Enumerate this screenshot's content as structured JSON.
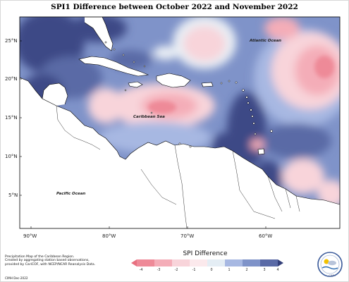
{
  "title": "SPI1 Difference between October 2022 and November 2022",
  "map": {
    "lat_ticks": [
      "25°N",
      "20°N",
      "15°N",
      "10°N",
      "5°N"
    ],
    "lon_ticks": [
      "90°W",
      "80°W",
      "70°W",
      "60°W"
    ],
    "labels": {
      "atlantic": "Atlantic Ocean",
      "caribbean": "Caribbean Sea",
      "pacific": "Pacific Ocean"
    },
    "colors": {
      "ocean_base": "#7f93c9",
      "strong_wet": "#3c4a86",
      "moderate_wet": "#5a6aa6",
      "mild_wet": "#a7b8e2",
      "near_normal": "#e9eef4",
      "mild_dry": "#f8d4da",
      "moderate_dry": "#f4adb8",
      "strong_dry": "#ee8a98",
      "land": "#ffffff",
      "coast": "#000000"
    }
  },
  "legend": {
    "title": "SPI Difference",
    "ticks": [
      "-4",
      "-3",
      "-2",
      "-1",
      "0",
      "1",
      "2",
      "3",
      "4"
    ],
    "bins": [
      "#ee8a98",
      "#f4adb8",
      "#f8d4da",
      "#fbe9ec",
      "#e4edf4",
      "#a7b8e2",
      "#7f93c9",
      "#5a6aa6"
    ],
    "left_arrow_color": "#e87080",
    "right_arrow_color": "#34407a"
  },
  "credits": {
    "line1": "Precipitation Map of the Caribbean Region.",
    "line2": "Created by aggregating station based observations,",
    "line3": "provided by CariCOF, with NCEP/NCAR Reanalysis Data.",
    "line4": "CIMH Dec-2022"
  },
  "logo_text": "CIMH"
}
